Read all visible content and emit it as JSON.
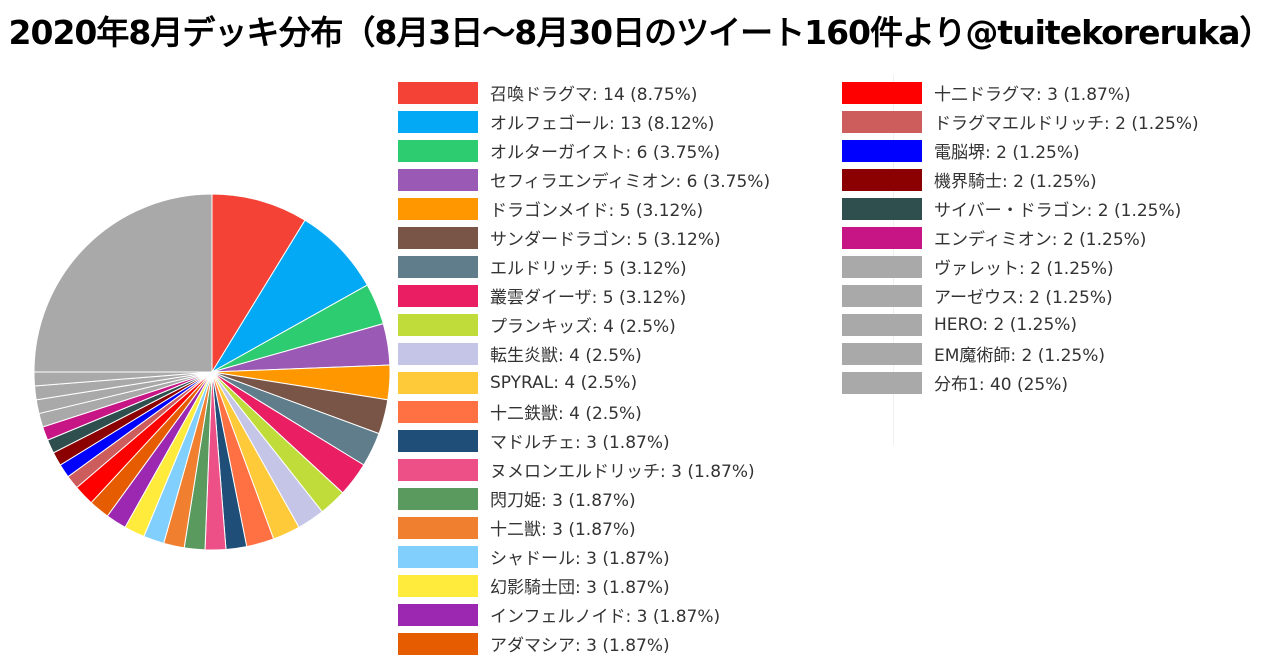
{
  "chart_data": {
    "type": "pie",
    "title": "2020年8月デッキ分布（8月3日～8月30日のツイート160件より@tuitekoreruka）",
    "legend_position": "right",
    "slices": [
      {
        "label": "召喚ドラグマ",
        "value": 14,
        "percent": "8.75%",
        "color": "#f44336"
      },
      {
        "label": "オルフェゴール",
        "value": 13,
        "percent": "8.12%",
        "color": "#03a9f4"
      },
      {
        "label": "オルターガイスト",
        "value": 6,
        "percent": "3.75%",
        "color": "#2ecc71"
      },
      {
        "label": "セフィラエンディミオン",
        "value": 6,
        "percent": "3.75%",
        "color": "#9b59b6"
      },
      {
        "label": "ドラゴンメイド",
        "value": 5,
        "percent": "3.12%",
        "color": "#ff9800"
      },
      {
        "label": "サンダードラゴン",
        "value": 5,
        "percent": "3.12%",
        "color": "#795548"
      },
      {
        "label": "エルドリッチ",
        "value": 5,
        "percent": "3.12%",
        "color": "#607d8b"
      },
      {
        "label": "叢雲ダイーザ",
        "value": 5,
        "percent": "3.12%",
        "color": "#e91e63"
      },
      {
        "label": "プランキッズ",
        "value": 4,
        "percent": "2.5%",
        "color": "#c0dc3b"
      },
      {
        "label": "転生炎獣",
        "value": 4,
        "percent": "2.5%",
        "color": "#c5c5e8"
      },
      {
        "label": "SPYRAL",
        "value": 4,
        "percent": "2.5%",
        "color": "#ffca3a"
      },
      {
        "label": "十二鉄獣",
        "value": 4,
        "percent": "2.5%",
        "color": "#ff7043"
      },
      {
        "label": "マドルチェ",
        "value": 3,
        "percent": "1.87%",
        "color": "#1f4e79"
      },
      {
        "label": "ヌメロンエルドリッチ",
        "value": 3,
        "percent": "1.87%",
        "color": "#ec5086"
      },
      {
        "label": "閃刀姫",
        "value": 3,
        "percent": "1.87%",
        "color": "#5a9a5e"
      },
      {
        "label": "十二獣",
        "value": 3,
        "percent": "1.87%",
        "color": "#f08030"
      },
      {
        "label": "シャドール",
        "value": 3,
        "percent": "1.87%",
        "color": "#81cffc"
      },
      {
        "label": "幻影騎士団",
        "value": 3,
        "percent": "1.87%",
        "color": "#ffeb3b"
      },
      {
        "label": "インフェルノイド",
        "value": 3,
        "percent": "1.87%",
        "color": "#9c27b0"
      },
      {
        "label": "アダマシア",
        "value": 3,
        "percent": "1.87%",
        "color": "#e65c00"
      },
      {
        "label": "十二ドラグマ",
        "value": 3,
        "percent": "1.87%",
        "color": "#ff0000"
      },
      {
        "label": "ドラグマエルドリッチ",
        "value": 2,
        "percent": "1.25%",
        "color": "#cd5c5c"
      },
      {
        "label": "電脳堺",
        "value": 2,
        "percent": "1.25%",
        "color": "#0000ff"
      },
      {
        "label": "機界騎士",
        "value": 2,
        "percent": "1.25%",
        "color": "#8b0000"
      },
      {
        "label": "サイバー・ドラゴン",
        "value": 2,
        "percent": "1.25%",
        "color": "#2f4f4f"
      },
      {
        "label": "エンディミオン",
        "value": 2,
        "percent": "1.25%",
        "color": "#c71585"
      },
      {
        "label": "ヴァレット",
        "value": 2,
        "percent": "1.25%",
        "color": "#a9a9a9"
      },
      {
        "label": "アーゼウス",
        "value": 2,
        "percent": "1.25%",
        "color": "#a9a9a9"
      },
      {
        "label": "HERO",
        "value": 2,
        "percent": "1.25%",
        "color": "#a9a9a9"
      },
      {
        "label": "EM魔術師",
        "value": 2,
        "percent": "1.25%",
        "color": "#a9a9a9"
      },
      {
        "label": "分布1",
        "value": 40,
        "percent": "25%",
        "color": "#a9a9a9"
      }
    ]
  }
}
